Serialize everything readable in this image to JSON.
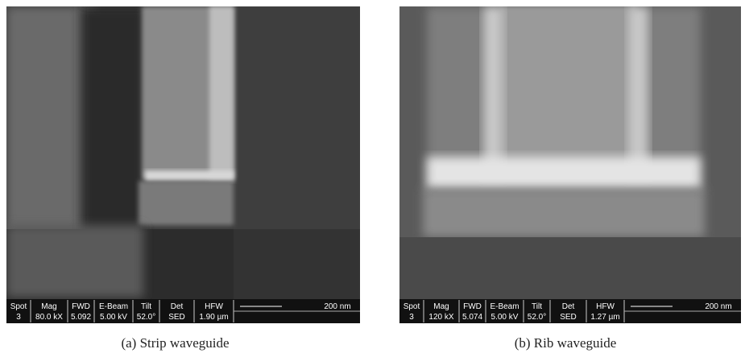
{
  "panels": [
    {
      "caption": "(a) Strip waveguide",
      "databar": {
        "labels": [
          "Spot",
          "Mag",
          "FWD",
          "E-Beam",
          "Tilt",
          "Det",
          "HFW"
        ],
        "values": [
          "3",
          "80.0 kX",
          "5.092",
          "5.00 kV",
          "52.0°",
          "SED",
          "1.90 µm"
        ],
        "scale": "200 nm"
      }
    },
    {
      "caption": "(b) Rib waveguide",
      "databar": {
        "labels": [
          "Spot",
          "Mag",
          "FWD",
          "E-Beam",
          "Tilt",
          "Det",
          "HFW"
        ],
        "values": [
          "3",
          "120 kX",
          "5.074",
          "5.00 kV",
          "52.0°",
          "SED",
          "1.27 µm"
        ],
        "scale": "200 nm"
      }
    }
  ]
}
